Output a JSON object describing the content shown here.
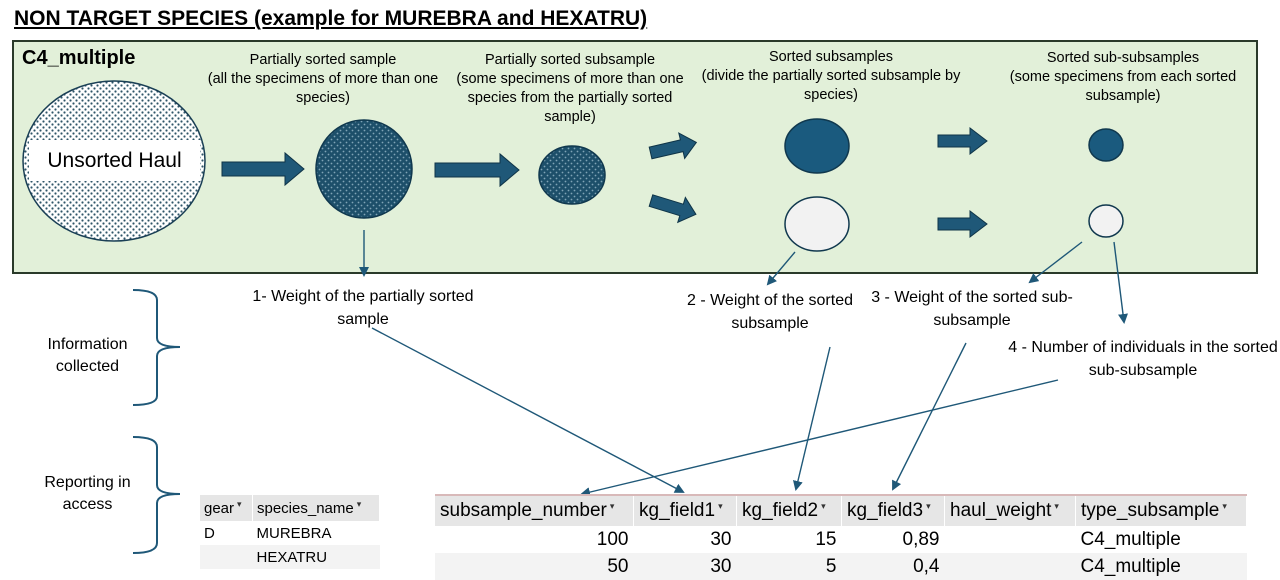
{
  "title": "NON TARGET SPECIES (example for MUREBRA and HEXATRU)",
  "panel": {
    "label": "C4_multiple",
    "unsorted_haul": "Unsorted Haul",
    "steps": [
      {
        "title": "Partially sorted sample",
        "desc": "(all the specimens of more than one species)"
      },
      {
        "title": "Partially sorted subsample",
        "desc": "(some specimens of more than one species from the partially sorted sample)"
      },
      {
        "title": "Sorted subsamples",
        "desc": "(divide the partially sorted subsample by species)"
      },
      {
        "title": "Sorted sub-subsamples",
        "desc": "(some specimens from each sorted subsample)"
      }
    ]
  },
  "info": {
    "w1": "1- Weight of the partially sorted sample",
    "w2": "2 - Weight of the sorted subsample",
    "w3": "3 - Weight of the sorted sub-subsample",
    "n4": "4 - Number of individuals in the sorted sub-subsample"
  },
  "side_labels": {
    "collected": "Information collected",
    "reporting": "Reporting in access"
  },
  "gear_table": {
    "headers": [
      "gear",
      "species_name"
    ],
    "rows": [
      [
        "D",
        "MUREBRA"
      ],
      [
        "",
        "HEXATRU"
      ]
    ]
  },
  "subsample_table": {
    "headers": [
      "subsample_number",
      "kg_field1",
      "kg_field2",
      "kg_field3",
      "haul_weight",
      "type_subsample"
    ],
    "rows": [
      [
        "100",
        "30",
        "15",
        "0,89",
        "",
        "C4_multiple"
      ],
      [
        "50",
        "30",
        "5",
        "0,4",
        "",
        "C4_multiple"
      ]
    ]
  },
  "colors": {
    "panel_bg": "#e2f0d9",
    "dark_blue": "#1a5a7e",
    "arrow_fill": "#1f5878",
    "light_circle": "#f2f2f2"
  }
}
